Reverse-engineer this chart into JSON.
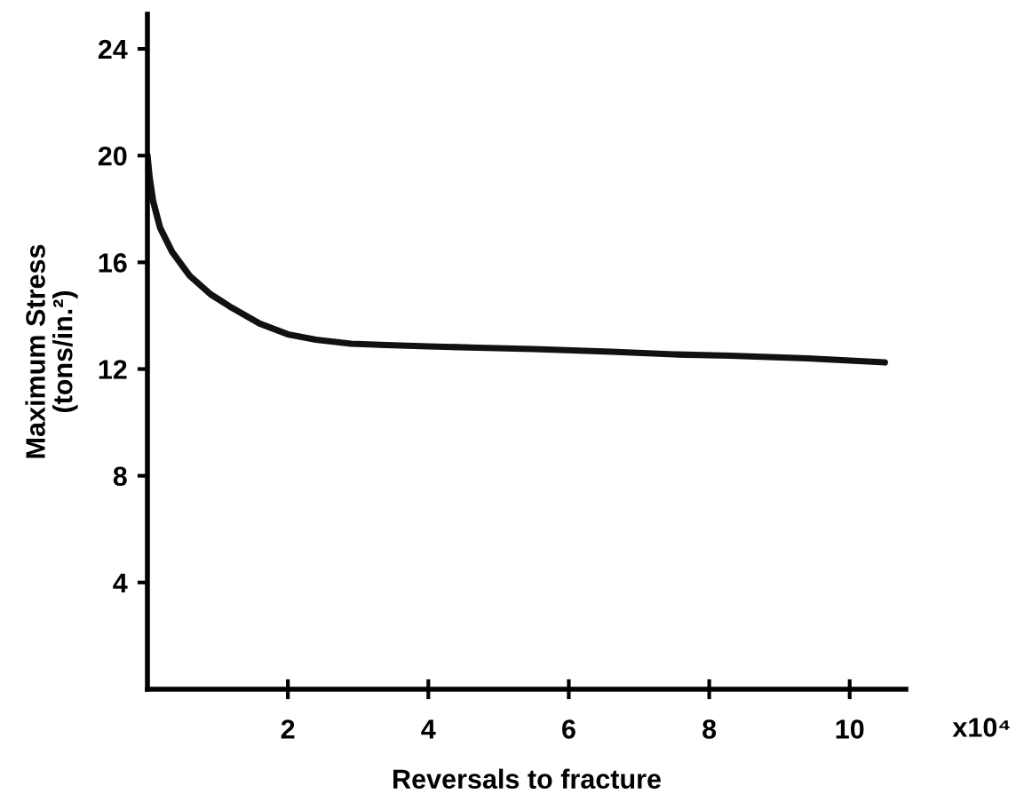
{
  "chart_data": {
    "type": "line",
    "xlabel": "Reversals to fracture",
    "ylabel": "Maximum Stress\n(tons/in.²)",
    "annotations": [
      "x10⁴"
    ],
    "x": [
      0.0,
      0.03,
      0.08,
      0.18,
      0.35,
      0.6,
      0.9,
      1.2,
      1.6,
      2.0,
      2.4,
      2.9,
      3.4,
      4.0,
      4.7,
      5.5,
      6.6,
      7.5,
      8.3,
      9.4,
      10.5
    ],
    "values": [
      20.0,
      19.2,
      18.3,
      17.3,
      16.4,
      15.5,
      14.8,
      14.3,
      13.7,
      13.3,
      13.1,
      12.95,
      12.9,
      12.85,
      12.8,
      12.75,
      12.65,
      12.55,
      12.5,
      12.4,
      12.25
    ],
    "color": "#111111",
    "marker": "none",
    "line_style": "solid",
    "grid": false,
    "legend": false,
    "xlim": [
      0,
      10.8
    ],
    "ylim": [
      0,
      25.3
    ],
    "xticks": [
      2,
      4,
      6,
      8,
      10
    ],
    "yticks": [
      4,
      8,
      12,
      16,
      20,
      24
    ]
  }
}
